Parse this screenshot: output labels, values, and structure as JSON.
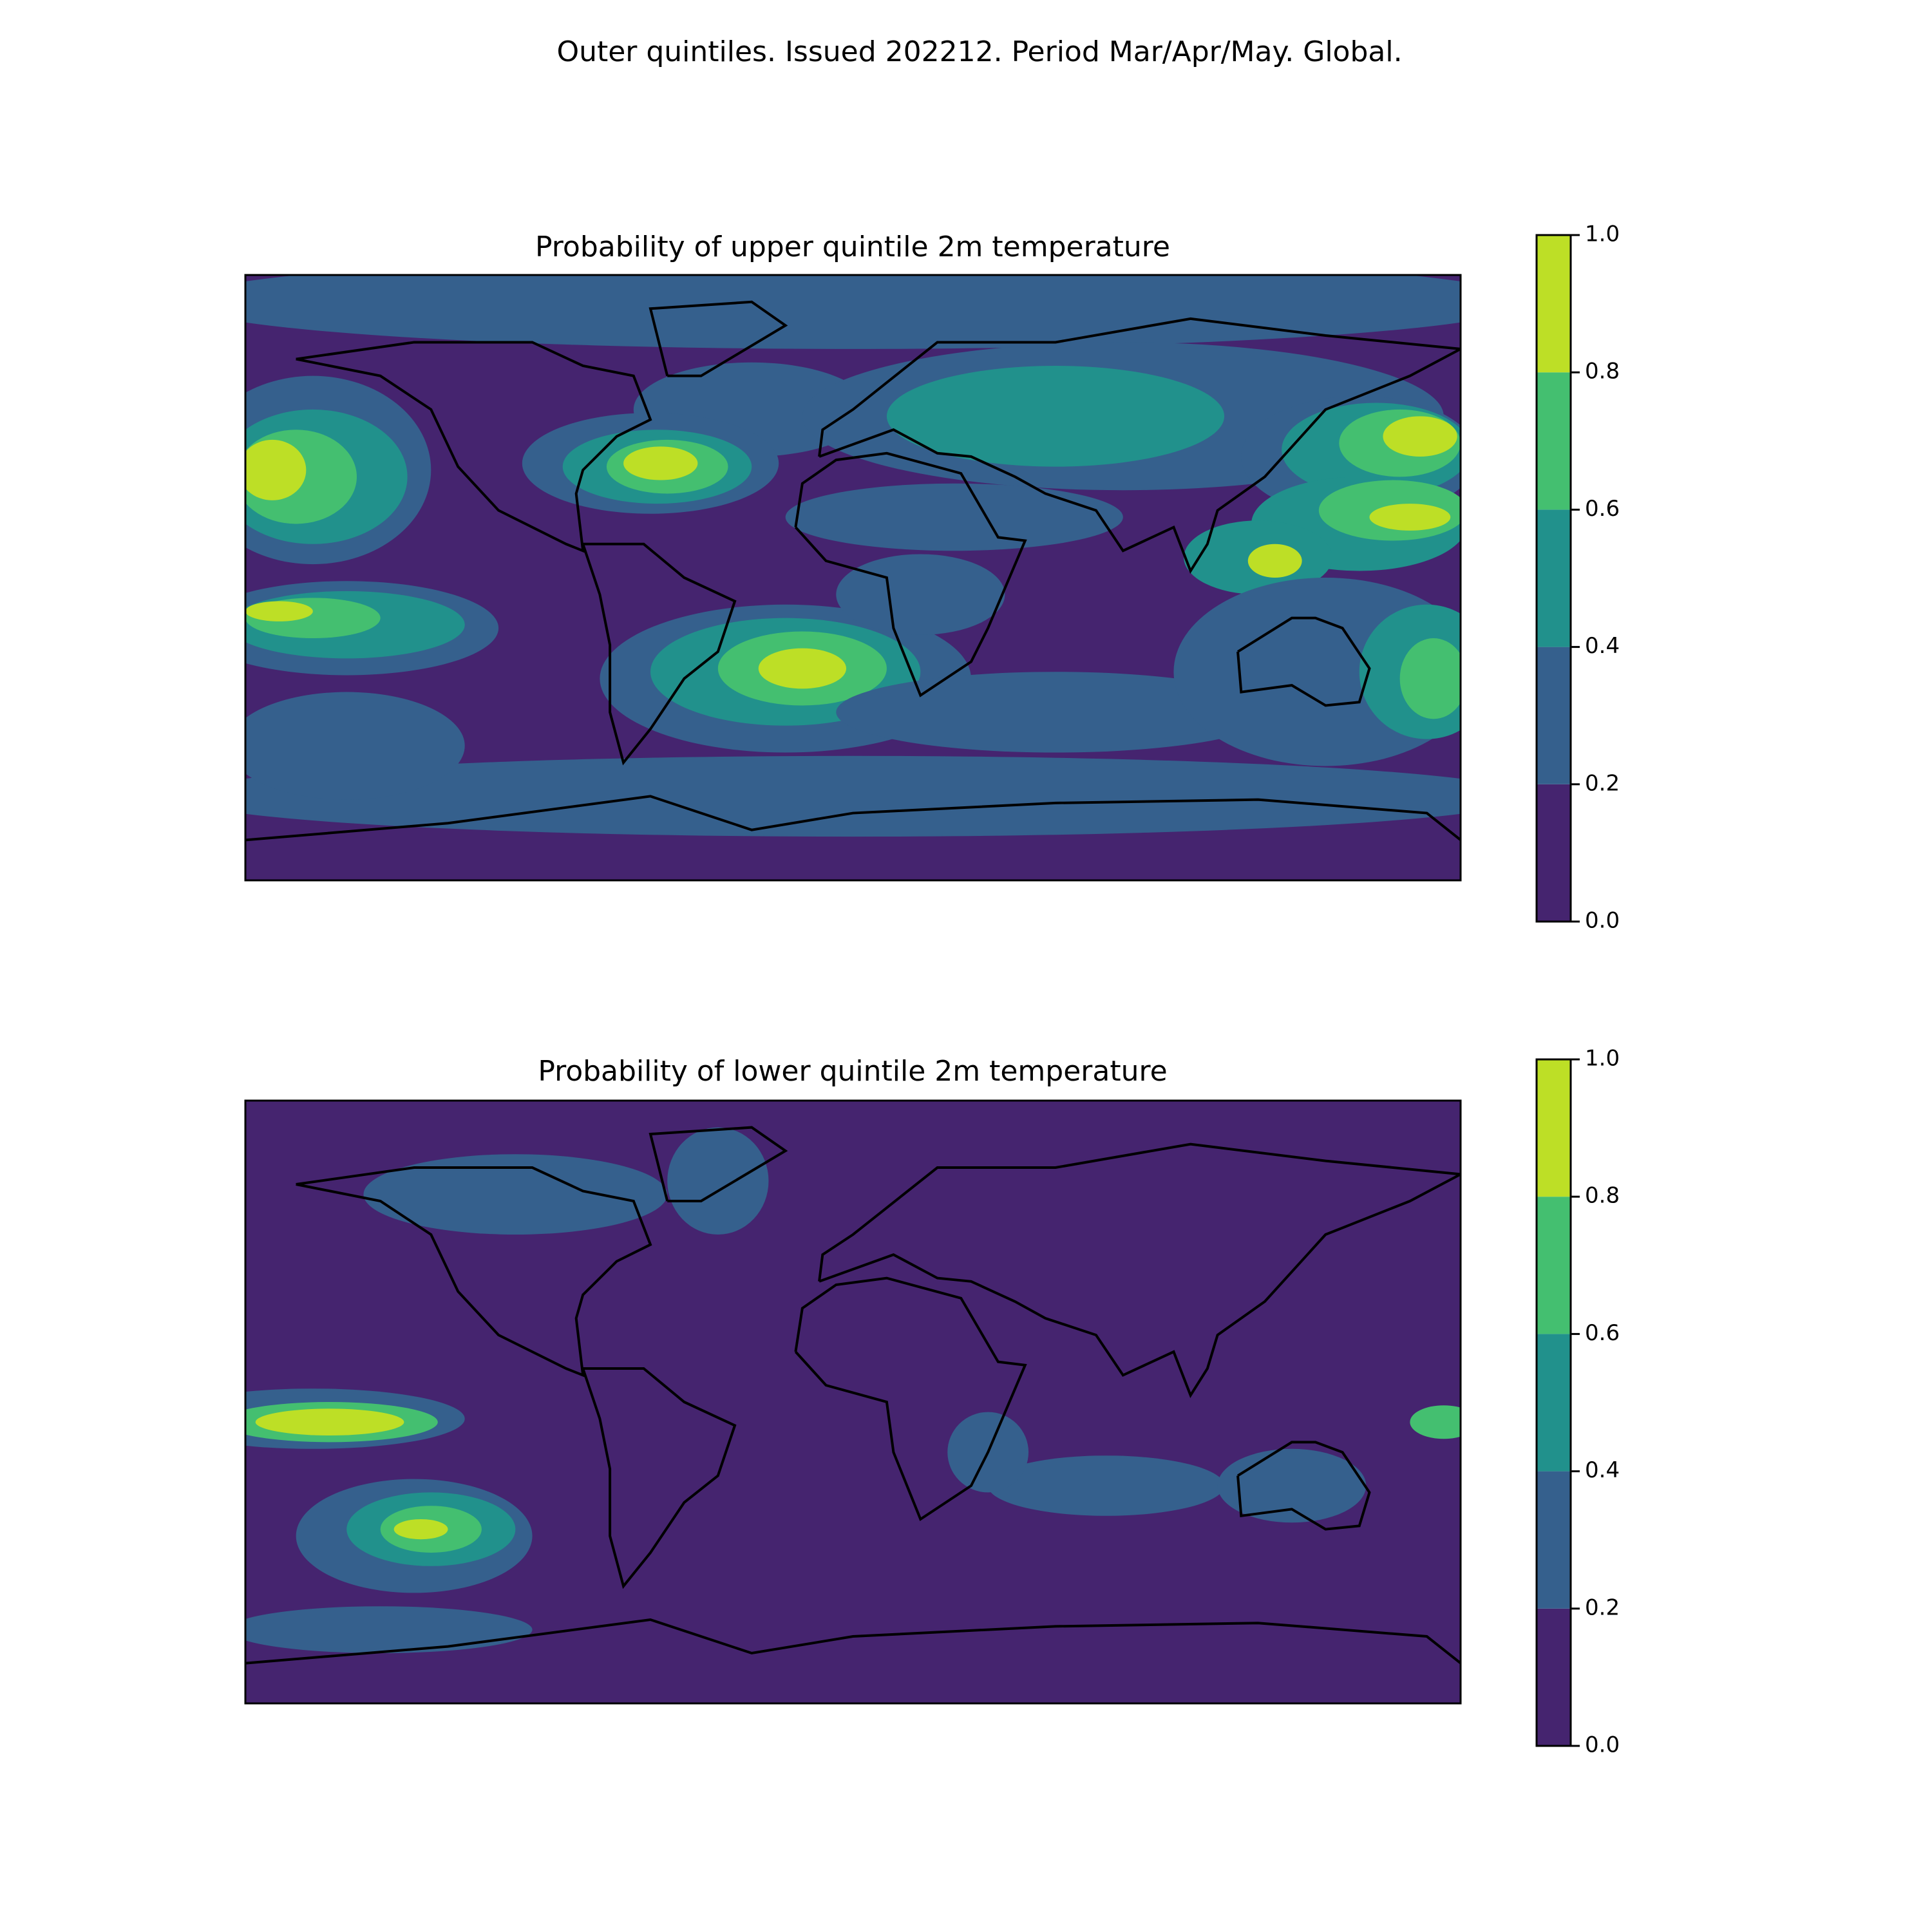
{
  "title": "Outer quintiles. Issued 202212. Period Mar/Apr/May. Global.",
  "chart_data": [
    {
      "type": "map",
      "title": "Probability of upper quintile 2m temperature",
      "clim": [
        0,
        1
      ],
      "colorbar_ticks": [
        {
          "value": 0,
          "label": "0.0"
        },
        0.2,
        0.4,
        0.6,
        0.8,
        {
          "value": 1,
          "label": "1.0"
        }
      ],
      "colors": [
        "#45246f",
        "#35608d",
        "#21918c",
        "#44bf70",
        "#bddf26"
      ]
    },
    {
      "type": "map",
      "title": "Probability of lower quintile 2m temperature",
      "clim": [
        0,
        1
      ],
      "colorbar_ticks": [
        {
          "value": 0,
          "label": "0.0"
        },
        0.2,
        0.4,
        0.6,
        0.8,
        {
          "value": 1,
          "label": "1.0"
        }
      ],
      "colors": [
        "#45246f",
        "#35608d",
        "#21918c",
        "#44bf70",
        "#bddf26"
      ]
    }
  ]
}
